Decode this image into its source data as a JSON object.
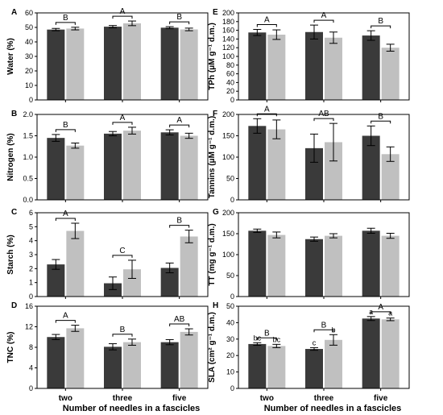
{
  "figure": {
    "xlabel_left": "Number of needles in a fascicles",
    "xlabel_right": "Number of needles in a fascicles",
    "colors": {
      "dark": "#3a3a3a",
      "light": "#c0c0c0",
      "axis": "#000000"
    }
  },
  "chart_data": [
    {
      "panel": "A",
      "type": "bar",
      "categories": [
        "two",
        "three",
        "five"
      ],
      "ylabel": "Water (%)",
      "ylim": [
        0,
        60
      ],
      "yticks": [
        "0",
        "10",
        "20",
        "30",
        "40",
        "50",
        "60"
      ],
      "series": [
        {
          "values": [
            48.5,
            50.5,
            49.8
          ],
          "err": [
            0.8,
            0.8,
            0.7
          ]
        },
        {
          "values": [
            49.2,
            52.8,
            48.6
          ],
          "err": [
            0.9,
            1.6,
            0.9
          ]
        }
      ],
      "group_letters": [
        "B",
        "A",
        "B"
      ],
      "bar_letters": []
    },
    {
      "panel": "B",
      "type": "bar",
      "categories": [
        "two",
        "three",
        "five"
      ],
      "ylabel": "Nitrogen (%)",
      "ylim": [
        0,
        2.0
      ],
      "yticks": [
        "0.0",
        "0.5",
        "1.0",
        "1.5",
        "2.0"
      ],
      "series": [
        {
          "values": [
            1.45,
            1.55,
            1.58
          ],
          "err": [
            0.08,
            0.05,
            0.06
          ]
        },
        {
          "values": [
            1.27,
            1.62,
            1.5
          ],
          "err": [
            0.06,
            0.08,
            0.06
          ]
        }
      ],
      "group_letters": [
        "B",
        "A",
        "A"
      ],
      "bar_letters": []
    },
    {
      "panel": "C",
      "type": "bar",
      "categories": [
        "two",
        "three",
        "five"
      ],
      "ylabel": "Starch (%)",
      "ylim": [
        0,
        6
      ],
      "yticks": [
        "0",
        "1",
        "2",
        "3",
        "4",
        "5",
        "6"
      ],
      "series": [
        {
          "values": [
            2.3,
            0.95,
            2.05
          ],
          "err": [
            0.35,
            0.45,
            0.35
          ]
        },
        {
          "values": [
            4.7,
            1.95,
            4.3
          ],
          "err": [
            0.55,
            0.65,
            0.45
          ]
        }
      ],
      "group_letters": [
        "A",
        "C",
        "B"
      ],
      "bar_letters": []
    },
    {
      "panel": "D",
      "type": "bar",
      "categories": [
        "two",
        "three",
        "five"
      ],
      "ylabel": "TNC (%)",
      "ylim": [
        0,
        16
      ],
      "yticks": [
        "0",
        "4",
        "8",
        "12",
        "16"
      ],
      "series": [
        {
          "values": [
            10.0,
            8.1,
            9.0
          ],
          "err": [
            0.5,
            0.6,
            0.5
          ]
        },
        {
          "values": [
            11.7,
            9.0,
            11.0
          ],
          "err": [
            0.6,
            0.6,
            0.6
          ]
        }
      ],
      "group_letters": [
        "A",
        "B",
        "AB"
      ],
      "bar_letters": []
    },
    {
      "panel": "E",
      "type": "bar",
      "categories": [
        "two",
        "three",
        "five"
      ],
      "ylabel": "TPh (μM g⁻¹ d.m.)",
      "ylim": [
        0,
        200
      ],
      "yticks": [
        "0",
        "20",
        "40",
        "60",
        "80",
        "100",
        "120",
        "140",
        "160",
        "180",
        "200"
      ],
      "series": [
        {
          "values": [
            155,
            156,
            148
          ],
          "err": [
            7,
            16,
            11
          ]
        },
        {
          "values": [
            150,
            143,
            120
          ],
          "err": [
            11,
            13,
            8
          ]
        }
      ],
      "group_letters": [
        "A",
        "A",
        "B"
      ],
      "bar_letters": []
    },
    {
      "panel": "F",
      "type": "bar",
      "categories": [
        "two",
        "three",
        "five"
      ],
      "ylabel": "Tannins (μM g⁻¹ d.m.)",
      "ylim": [
        0,
        200
      ],
      "yticks": [
        "0",
        "50",
        "100",
        "150",
        "200"
      ],
      "series": [
        {
          "values": [
            173,
            121,
            150
          ],
          "err": [
            17,
            33,
            23
          ]
        },
        {
          "values": [
            165,
            135,
            107
          ],
          "err": [
            22,
            44,
            17
          ]
        }
      ],
      "group_letters": [
        "A",
        "AB",
        "B"
      ],
      "bar_letters": []
    },
    {
      "panel": "G",
      "type": "bar",
      "categories": [
        "two",
        "three",
        "five"
      ],
      "ylabel": "TT (mg g⁻¹ d.m.)",
      "ylim": [
        0,
        200
      ],
      "yticks": [
        "0",
        "50",
        "100",
        "150",
        "200"
      ],
      "series": [
        {
          "values": [
            157,
            137,
            157
          ],
          "err": [
            4,
            5,
            6
          ]
        },
        {
          "values": [
            147,
            145,
            145
          ],
          "err": [
            7,
            5,
            6
          ]
        }
      ],
      "group_letters": [],
      "bar_letters": []
    },
    {
      "panel": "H",
      "type": "bar",
      "categories": [
        "two",
        "three",
        "five"
      ],
      "ylabel": "SLA (cm² g⁻¹ d.m.)",
      "ylim": [
        0,
        50
      ],
      "yticks": [
        "0",
        "10",
        "20",
        "30",
        "40",
        "50"
      ],
      "series": [
        {
          "values": [
            27,
            24,
            42.5
          ],
          "err": [
            0.8,
            0.8,
            1.2
          ]
        },
        {
          "values": [
            25.8,
            29.5,
            42.0
          ],
          "err": [
            1.0,
            3.2,
            0.8
          ]
        }
      ],
      "group_letters": [
        "B",
        "B",
        "A"
      ],
      "bar_letters": [
        [
          "bc",
          "bc"
        ],
        [
          "c",
          "b"
        ],
        [
          "a",
          "a"
        ]
      ]
    }
  ]
}
